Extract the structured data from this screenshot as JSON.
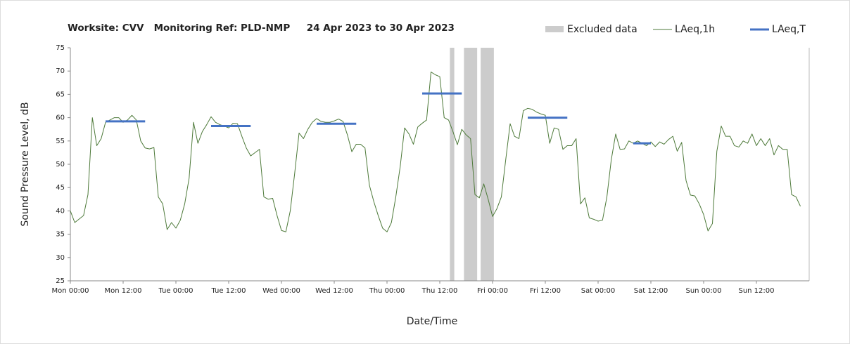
{
  "chart_data": {
    "type": "line",
    "title": "Worksite: CVV   Monitoring Ref: PLD-NMP     24 Apr 2023 to 30 Apr 2023",
    "xlabel": "Date/Time",
    "ylabel": "Sound Pressure Level, dB",
    "xlim": [
      0,
      168
    ],
    "ylim": [
      25,
      75
    ],
    "yticks": [
      25,
      30,
      35,
      40,
      45,
      50,
      55,
      60,
      65,
      70,
      75
    ],
    "xticks": [
      {
        "value": 0,
        "label": "Mon 00:00"
      },
      {
        "value": 12,
        "label": "Mon 12:00"
      },
      {
        "value": 24,
        "label": "Tue 00:00"
      },
      {
        "value": 36,
        "label": "Tue 12:00"
      },
      {
        "value": 48,
        "label": "Wed 00:00"
      },
      {
        "value": 60,
        "label": "Wed 12:00"
      },
      {
        "value": 72,
        "label": "Thu 00:00"
      },
      {
        "value": 84,
        "label": "Thu 12:00"
      },
      {
        "value": 96,
        "label": "Fri 00:00"
      },
      {
        "value": 108,
        "label": "Fri 12:00"
      },
      {
        "value": 120,
        "label": "Sat 00:00"
      },
      {
        "value": 132,
        "label": "Sat 12:00"
      },
      {
        "value": 144,
        "label": "Sun 00:00"
      },
      {
        "value": 156,
        "label": "Sun 12:00"
      }
    ],
    "excluded_name": "Excluded data",
    "excluded_color": "#cccccc",
    "excluded": [
      [
        86.3,
        87.3
      ],
      [
        89.5,
        92.5
      ],
      [
        93.3,
        96.3
      ]
    ],
    "series": [
      {
        "name": "LAeq,1h",
        "color": "#4e7a3a",
        "width": 1,
        "x": [
          0,
          1,
          3,
          4,
          5,
          6,
          7,
          8,
          9,
          10,
          11,
          12,
          13,
          14,
          15,
          16,
          17,
          18,
          19,
          20,
          21,
          22,
          23,
          24,
          25,
          26,
          27,
          28,
          29,
          30,
          31,
          32,
          33,
          34,
          35,
          36,
          37,
          38,
          39,
          40,
          41,
          42,
          43,
          44,
          45,
          46,
          47,
          48,
          49,
          50,
          51,
          52,
          53,
          54,
          55,
          56,
          57,
          58,
          59,
          60,
          61,
          62,
          63,
          64,
          65,
          66,
          67,
          68,
          69,
          70,
          71,
          72,
          73,
          74,
          75,
          76,
          77,
          78,
          79,
          80,
          81,
          82,
          83,
          84,
          85,
          86,
          87,
          88,
          89,
          90,
          91,
          92,
          93,
          94,
          95,
          96,
          97,
          98,
          99,
          100,
          101,
          102,
          103,
          104,
          105,
          106,
          107,
          108,
          109,
          110,
          111,
          112,
          113,
          114,
          115,
          116,
          117,
          118,
          119,
          120,
          121,
          122,
          123,
          124,
          125,
          126,
          127,
          128,
          129,
          130,
          131,
          132,
          133,
          134,
          135,
          136,
          137,
          138,
          139,
          140,
          141,
          142,
          143,
          144,
          145,
          146,
          147,
          148,
          149,
          150,
          151,
          152,
          153,
          154,
          155,
          156,
          157,
          158,
          159,
          160,
          161,
          162,
          163,
          164,
          165,
          166
        ],
        "values": [
          40,
          37.5,
          39,
          43.5,
          60,
          54,
          55.5,
          59,
          59.5,
          60,
          60,
          59,
          59.5,
          60.5,
          59.5,
          55,
          53.5,
          53.3,
          53.6,
          43,
          41.5,
          36,
          37.5,
          36.3,
          38,
          41.5,
          47,
          59,
          54.5,
          57,
          58.5,
          60.2,
          59,
          58.5,
          58.2,
          57.8,
          58.8,
          58.7,
          56,
          53.5,
          51.8,
          52.5,
          53.2,
          43,
          42.5,
          42.7,
          39,
          35.8,
          35.5,
          40,
          48,
          56.7,
          55.5,
          57.5,
          59,
          59.8,
          59.2,
          59,
          59,
          59.3,
          59.7,
          59.2,
          56.3,
          52.7,
          54.3,
          54.3,
          53.5,
          45.5,
          42,
          39,
          36.3,
          35.5,
          37.5,
          43,
          49.5,
          57.8,
          56.5,
          54.3,
          58,
          58.8,
          59.5,
          69.8,
          69.2,
          68.8,
          60,
          59.5,
          57,
          54.2,
          57.5,
          56.3,
          55.5,
          43.5,
          42.8,
          45.8,
          42.5,
          38.8,
          40.5,
          43,
          51,
          58.7,
          56,
          55.5,
          61.5,
          62,
          61.8,
          61.2,
          60.8,
          60.5,
          54.5,
          57.8,
          57.5,
          53.2,
          54,
          54,
          55.5,
          41.5,
          42.8,
          38.5,
          38.2,
          37.8,
          38,
          43,
          51,
          56.5,
          53.2,
          53.3,
          55,
          54.5,
          55,
          54.5,
          54,
          54.8,
          53.8,
          54.8,
          54.3,
          55.3,
          56,
          52.8,
          54.7,
          46.5,
          43.4,
          43.2,
          41.5,
          39.2,
          35.7,
          37.3,
          52.8,
          58.2,
          56,
          56,
          54,
          53.7,
          55,
          54.5,
          56.5,
          54,
          55.5,
          54,
          55.5,
          52,
          54,
          53.2,
          53.2,
          43.5,
          43,
          41
        ]
      },
      {
        "name": "LAeq,T",
        "color": "#4472c4",
        "width": 3,
        "x": [
          8,
          17,
          null,
          32,
          41,
          null,
          56,
          65,
          null,
          80,
          89,
          null,
          104,
          113,
          null,
          128,
          132
        ],
        "values": [
          59.2,
          59.2,
          null,
          58.2,
          58.2,
          null,
          58.7,
          58.7,
          null,
          65.2,
          65.2,
          null,
          60,
          60,
          null,
          54.5,
          54.5
        ]
      }
    ]
  }
}
